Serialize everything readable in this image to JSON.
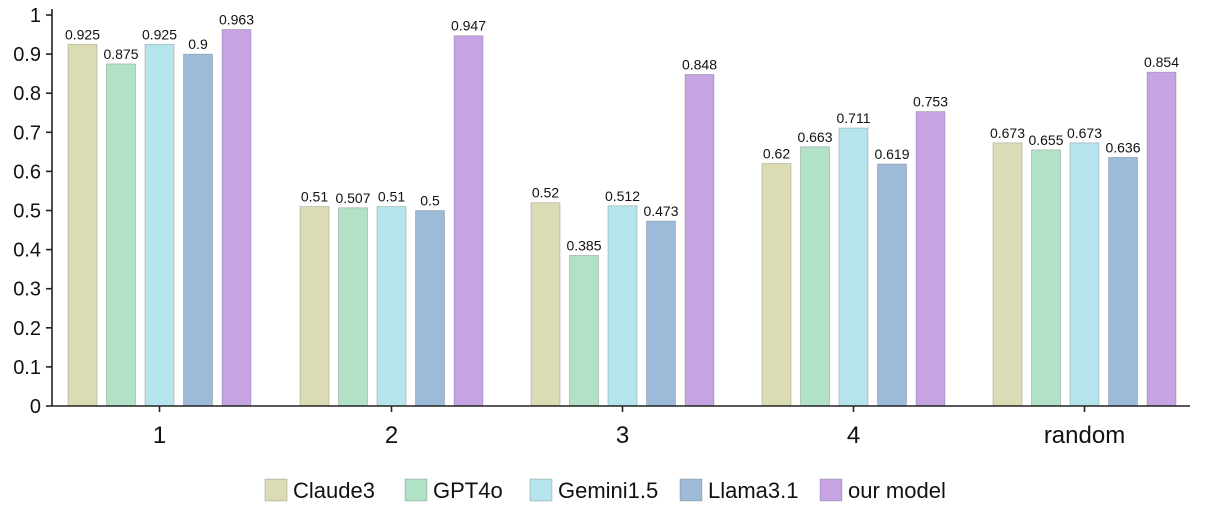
{
  "chart_data": {
    "type": "bar",
    "title": "",
    "xlabel": "",
    "ylabel": "",
    "ylim": [
      0,
      1
    ],
    "yticks": [
      "0",
      "0.1",
      "0.2",
      "0.3",
      "0.4",
      "0.5",
      "0.6",
      "0.7",
      "0.8",
      "0.9",
      "1"
    ],
    "grid": false,
    "legend_position": "bottom",
    "categories": [
      "1",
      "2",
      "3",
      "4",
      "random"
    ],
    "series": [
      {
        "name": "Claude3",
        "color": "#dcdcb4",
        "values": [
          0.925,
          0.51,
          0.52,
          0.62,
          0.673
        ],
        "labels": [
          "0.925",
          "0.51",
          "0.52",
          "0.62",
          "0.673"
        ]
      },
      {
        "name": "GPT4o",
        "color": "#b1e1c6",
        "values": [
          0.875,
          0.507,
          0.385,
          0.663,
          0.655
        ],
        "labels": [
          "0.875",
          "0.507",
          "0.385",
          "0.663",
          "0.655"
        ]
      },
      {
        "name": "Gemini1.5",
        "color": "#b5e4ec",
        "values": [
          0.925,
          0.51,
          0.512,
          0.711,
          0.673
        ],
        "labels": [
          "0.925",
          "0.51",
          "0.512",
          "0.711",
          "0.673"
        ]
      },
      {
        "name": "Llama3.1",
        "color": "#9dbbd9",
        "values": [
          0.9,
          0.5,
          0.473,
          0.619,
          0.636
        ],
        "labels": [
          "0.9",
          "0.5",
          "0.473",
          "0.619",
          "0.636"
        ]
      },
      {
        "name": "our model",
        "color": "#c6a3e3",
        "values": [
          0.963,
          0.947,
          0.848,
          0.753,
          0.854
        ],
        "labels": [
          "0.963",
          "0.947",
          "0.848",
          "0.753",
          "0.854"
        ]
      }
    ]
  }
}
